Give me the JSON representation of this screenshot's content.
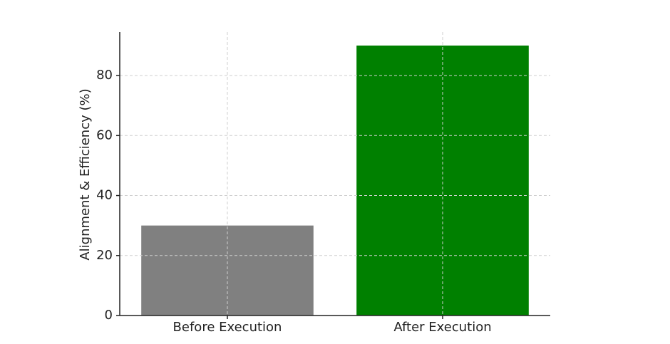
{
  "chart_data": {
    "type": "bar",
    "y_label": "Alignment & Efficiency (%)",
    "categories": [
      "Before Execution",
      "After Execution"
    ],
    "values": [
      30,
      90
    ],
    "colors": [
      "#808080",
      "#008000"
    ],
    "ylim": [
      0,
      94.5
    ],
    "yticks": [
      0,
      20,
      40,
      60,
      80
    ],
    "grid": true
  }
}
